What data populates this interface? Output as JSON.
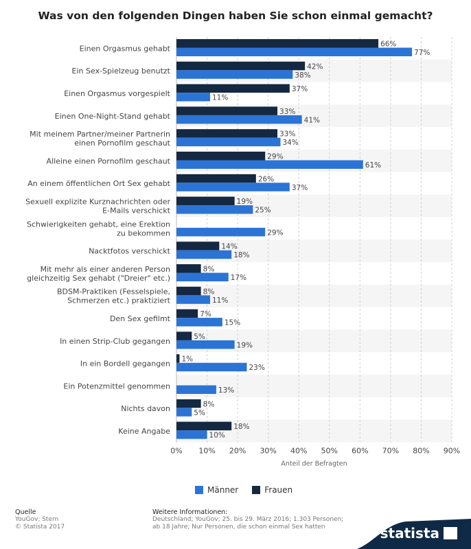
{
  "title": "Was von den folgenden Dingen haben Sie schon einmal gemacht?",
  "chart_data": {
    "type": "bar",
    "orientation": "horizontal",
    "categories": [
      "Einen Orgasmus gehabt",
      "Ein Sex-Spielzeug benutzt",
      "Einen Orgasmus vorgespielt",
      "Einen One-Night-Stand gehabt",
      "Mit meinem Partner/meiner Partnerin\neinen Pornofilm geschaut",
      "Alleine einen Pornofilm geschaut",
      "An einem öffentlichen Ort Sex gehabt",
      "Sexuell explizite Kurznachrichten oder\nE-Mails verschickt",
      "Schwierigkeiten gehabt, eine Erektion\nzu bekommen",
      "Nacktfotos verschickt",
      "Mit mehr als einer anderen Person\ngleichzeitig Sex gehabt (\"Dreier\" etc.)",
      "BDSM-Praktiken (Fesselspiele,\nSchmerzen etc.) praktiziert",
      "Den Sex gefilmt",
      "In einen Strip-Club gegangen",
      "In ein Bordell gegangen",
      "Ein Potenzmittel genommen",
      "Nichts davon",
      "Keine Angabe"
    ],
    "series": [
      {
        "name": "Frauen",
        "color": "#152841",
        "values": [
          66,
          42,
          37,
          33,
          33,
          29,
          26,
          19,
          null,
          14,
          8,
          8,
          7,
          5,
          1,
          null,
          8,
          18
        ]
      },
      {
        "name": "Männer",
        "color": "#2b74d6",
        "values": [
          77,
          38,
          11,
          41,
          34,
          61,
          37,
          25,
          29,
          18,
          17,
          11,
          15,
          19,
          23,
          13,
          5,
          10
        ]
      }
    ],
    "xlim": [
      0,
      90
    ],
    "x_ticks": [
      0,
      10,
      20,
      30,
      40,
      50,
      60,
      70,
      80,
      90
    ],
    "tick_format": "{v}%",
    "value_format": "{v}%",
    "xlabel": "Anteil der Befragten",
    "grid": "vertical dashed",
    "legend_position": "bottom"
  },
  "legend": {
    "maenner": "Männer",
    "frauen": "Frauen"
  },
  "colors": {
    "frauen": "#152841",
    "maenner": "#2b74d6",
    "brand": "#0f2a46"
  },
  "footer": {
    "source_head": "Quelle",
    "source_line1": "YouGov; Stern",
    "source_line2": "© Statista 2017",
    "info_head": "Weitere Informationen:",
    "info_text": "Deutschland; YouGov; 25. bis 29. März 2016; 1.303 Personen; ab 18 Jahre; Nur Personen, die schon einmal Sex hatten"
  },
  "brand": {
    "name": "statista"
  }
}
